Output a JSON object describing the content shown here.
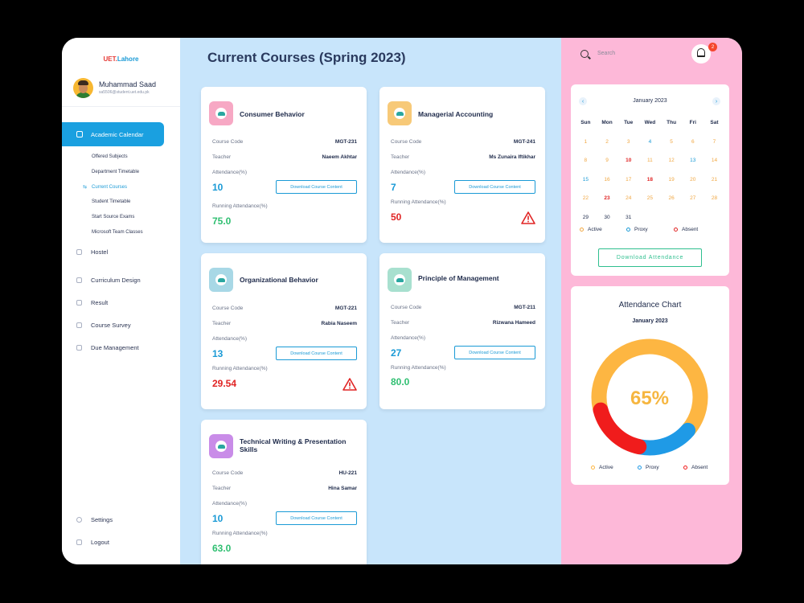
{
  "sidebar": {
    "brand_a": "UET.",
    "brand_b": "Lahore",
    "user_name": "Muhammad Saad",
    "user_email": "sa5506@student.uet.edu.pk",
    "active_item": "Academic Calendar",
    "sub_items": [
      "Offered Subjects",
      "Department Timetable",
      "Current Courses",
      "Student Timetable",
      "Start Source Exams",
      "Microsoft Team Classes"
    ],
    "items": [
      "Hostel",
      "Curriculum Design",
      "Result",
      "Course Survey",
      "Due Management"
    ],
    "settings": "Settings",
    "logout": "Logout"
  },
  "main": {
    "title": "Current Courses (Spring 2023)",
    "labels": {
      "code": "Course Code",
      "teacher": "Teacher",
      "attendance": "Attendance(%)",
      "running": "Running Attendance(%)",
      "download": "Download Course Content"
    },
    "courses": [
      {
        "title": "Consumer Behavior",
        "code": "MGT-231",
        "teacher": "Naeem Akhtar",
        "attendance": "10",
        "running": "75.0",
        "warning": false,
        "color": "#f7a8c4"
      },
      {
        "title": "Managerial Accounting",
        "code": "MGT-241",
        "teacher": "Ms Zunaira Iftikhar",
        "attendance": "7",
        "running": "50",
        "warning": true,
        "color": "#f7c978"
      },
      {
        "title": "Organizational Behavior",
        "code": "MGT-221",
        "teacher": "Rabia Naseem",
        "attendance": "13",
        "running": "29.54",
        "warning": true,
        "color": "#a8d8e6"
      },
      {
        "title": "Principle of Management",
        "code": "MGT-211",
        "teacher": "Rizwana Hameed",
        "attendance": "27",
        "running": "80.0",
        "warning": false,
        "color": "#a8e0cf"
      },
      {
        "title": "Technical Writing & Presentation Skills",
        "code": "HU-221",
        "teacher": "Hina Samar",
        "attendance": "10",
        "running": "63.0",
        "warning": false,
        "color": "#c98ce8"
      }
    ]
  },
  "right": {
    "search_placeholder": "Search",
    "notifications": "2",
    "calendar": {
      "month": "January 2023",
      "days": [
        "Sun",
        "Mon",
        "Tue",
        "Wed",
        "Thu",
        "Fri",
        "Sat"
      ],
      "rows": [
        [
          "1",
          "2",
          "3",
          "4",
          "5",
          "6",
          "7"
        ],
        [
          "8",
          "9",
          "10",
          "11",
          "12",
          "13",
          "14"
        ],
        [
          "15",
          "16",
          "17",
          "18",
          "19",
          "20",
          "21"
        ],
        [
          "22",
          "23",
          "24",
          "25",
          "26",
          "27",
          "28"
        ],
        [
          "29",
          "30",
          "31",
          "",
          "",
          "",
          ""
        ]
      ],
      "blue_days": [
        "4",
        "13",
        "15"
      ],
      "red_days": [
        "10",
        "18",
        "23"
      ],
      "dark_days": [
        "29",
        "30",
        "31"
      ],
      "legend": [
        "Active",
        "Proxy",
        "Absent"
      ],
      "legend_colors": [
        "#f0a742",
        "#1a9ad6",
        "#e02424"
      ],
      "download_label": "Download  Attendance"
    },
    "chart": {
      "title": "Attendance Chart",
      "subtitle": "January 2023",
      "center_label": "65%",
      "legend": [
        "Active",
        "Proxy",
        "Absent"
      ]
    }
  },
  "chart_data": {
    "type": "pie",
    "categories": [
      "Active",
      "Proxy",
      "Absent"
    ],
    "values": [
      65,
      17,
      18
    ],
    "colors": [
      "#fdb642",
      "#1f9ae6",
      "#f01c1c"
    ],
    "title": "Attendance Chart",
    "subtitle": "January 2023"
  }
}
